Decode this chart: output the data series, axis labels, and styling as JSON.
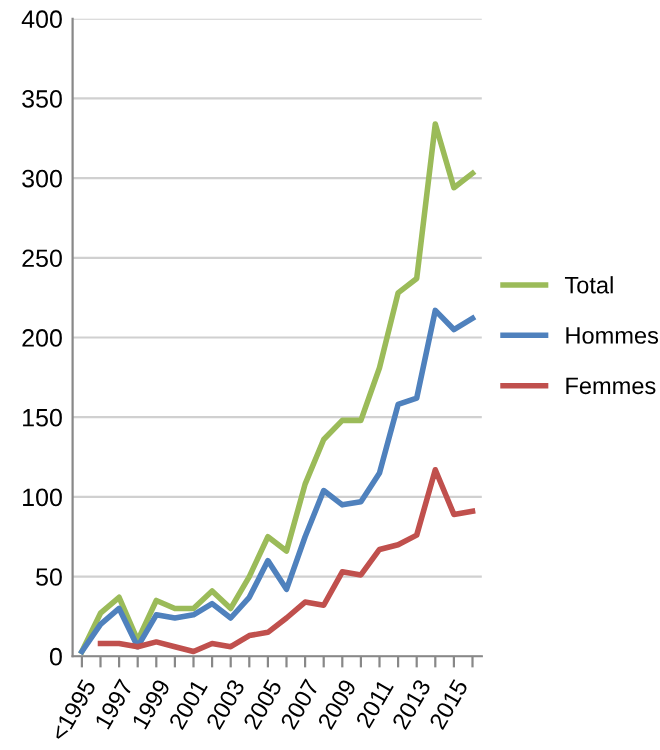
{
  "chart_data": {
    "type": "line",
    "categories": [
      "<1995",
      null,
      "1997",
      null,
      "1999",
      null,
      "2001",
      null,
      "2003",
      null,
      "2005",
      null,
      "2007",
      null,
      "2009",
      null,
      "2011",
      null,
      "2013",
      null,
      "2015",
      null
    ],
    "series": [
      {
        "name": "Total",
        "color": "#9bbb59",
        "values": [
          3,
          27,
          37,
          10,
          35,
          30,
          30,
          41,
          30,
          50,
          75,
          66,
          108,
          136,
          148,
          148,
          181,
          228,
          237,
          334,
          294,
          303
        ]
      },
      {
        "name": "Hommes",
        "color": "#4f81bd",
        "values": [
          3,
          20,
          30,
          6,
          26,
          24,
          26,
          33,
          24,
          37,
          60,
          42,
          75,
          104,
          95,
          97,
          115,
          158,
          162,
          217,
          205,
          212
        ]
      },
      {
        "name": "Femmes",
        "color": "#c0504d",
        "values": [
          null,
          8,
          8,
          6,
          9,
          6,
          3,
          8,
          6,
          13,
          15,
          24,
          34,
          32,
          53,
          51,
          67,
          70,
          76,
          117,
          89,
          91
        ]
      }
    ],
    "ylim": [
      0,
      400
    ],
    "yticks": [
      0,
      50,
      100,
      150,
      200,
      250,
      300,
      350,
      400
    ],
    "grid": "y",
    "legend": "right",
    "marker": "none",
    "line_style": "solid"
  }
}
